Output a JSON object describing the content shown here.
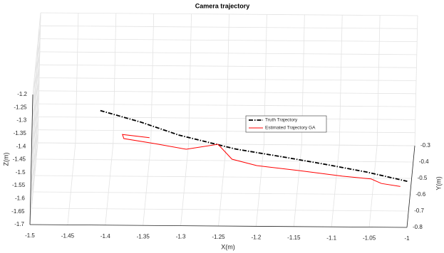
{
  "chart_data": {
    "type": "line3d",
    "title": "Camera trajectory",
    "xlabel": "X(m)",
    "ylabel": "Y(m)",
    "zlabel": "Z(m)",
    "xlim": [
      -1.5,
      -1
    ],
    "ylim": [
      -0.8,
      -0.3
    ],
    "zlim": [
      -1.7,
      -1.2
    ],
    "xticks": [
      -1.5,
      -1.45,
      -1.4,
      -1.35,
      -1.3,
      -1.25,
      -1.2,
      -1.15,
      -1.1,
      -1.05,
      -1
    ],
    "yticks": [
      -0.8,
      -0.7,
      -0.6,
      -0.5,
      -0.4,
      -0.3
    ],
    "zticks": [
      -1.7,
      -1.65,
      -1.6,
      -1.55,
      -1.5,
      -1.45,
      -1.4,
      -1.35,
      -1.3,
      -1.25,
      -1.2
    ],
    "grid": true,
    "legend": "center",
    "series": [
      {
        "name": "Truth Trajectory",
        "color": "#000000",
        "linestyle": "dashdot",
        "x": [
          -1.414,
          -1.36,
          -1.309,
          -1.233,
          -1.17,
          -1.12,
          -1.06,
          -1.005
        ],
        "y": [
          -0.55,
          -0.55,
          -0.55,
          -0.55,
          -0.55,
          -0.55,
          -0.55,
          -0.55
        ],
        "z": [
          -1.417,
          -1.46,
          -1.509,
          -1.561,
          -1.59,
          -1.614,
          -1.645,
          -1.68
        ]
      },
      {
        "name": "Estimated Trajectory GA",
        "color": "#ff0000",
        "linestyle": "solid",
        "x": [
          -1.348,
          -1.384,
          -1.382,
          -1.342,
          -1.299,
          -1.257,
          -1.238,
          -1.205,
          -1.148,
          -1.091,
          -1.053,
          -1.039,
          -1.014
        ],
        "y": [
          -0.55,
          -0.55,
          -0.55,
          -0.55,
          -0.55,
          -0.55,
          -0.55,
          -0.55,
          -0.55,
          -0.55,
          -0.55,
          -0.55,
          -0.55
        ],
        "z": [
          -1.52,
          -1.508,
          -1.524,
          -1.542,
          -1.563,
          -1.543,
          -1.6,
          -1.624,
          -1.642,
          -1.662,
          -1.672,
          -1.689,
          -1.7
        ]
      }
    ]
  }
}
